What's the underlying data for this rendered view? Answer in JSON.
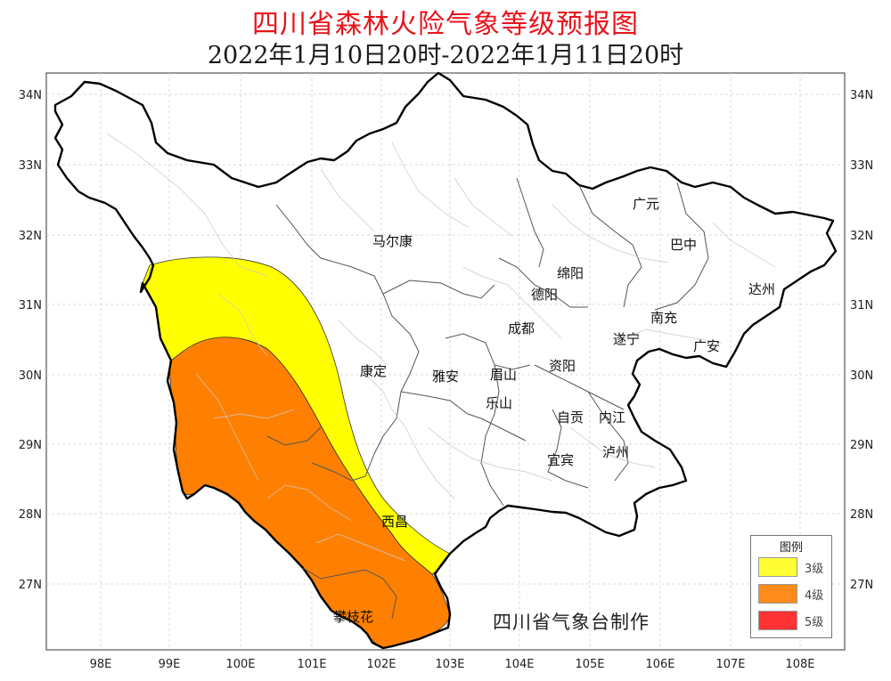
{
  "title": "四川省森林火险气象等级预报图",
  "subtitle": "2022年1月10日20时-2022年1月11日20时",
  "longitude_ticks": [
    "98E",
    "99E",
    "100E",
    "101E",
    "102E",
    "103E",
    "104E",
    "105E",
    "106E",
    "107E",
    "108E"
  ],
  "latitude_ticks": [
    "34N",
    "33N",
    "32N",
    "31N",
    "30N",
    "29N",
    "28N",
    "27N"
  ],
  "cities": {
    "maerkang": "马尔康",
    "guangyuan": "广元",
    "bazhong": "巴中",
    "mianyang": "绵阳",
    "dazhou": "达州",
    "deyang": "德阳",
    "nanchong": "南充",
    "chengdu": "成都",
    "suining": "遂宁",
    "guangan": "广安",
    "kangding": "康定",
    "yaan": "雅安",
    "meishan": "眉山",
    "ziyang": "资阳",
    "leshan": "乐山",
    "zigong": "自贡",
    "neijiang": "内江",
    "yibin": "宜宾",
    "luzhou": "泸州",
    "xichang": "西昌",
    "panzhihua": "攀枝花"
  },
  "legend": {
    "title": "图例",
    "items": [
      {
        "label": "3级",
        "color": "#ffff33"
      },
      {
        "label": "4级",
        "color": "#ff8c1a"
      },
      {
        "label": "5级",
        "color": "#ff3333"
      }
    ]
  },
  "credit": "四川省气象台制作",
  "colors": {
    "level3": "#ffff00",
    "level4": "#ff8000",
    "boundary": "#000000",
    "county_lines": "#c8c8c8",
    "gridlines": "#cfcfcf"
  }
}
